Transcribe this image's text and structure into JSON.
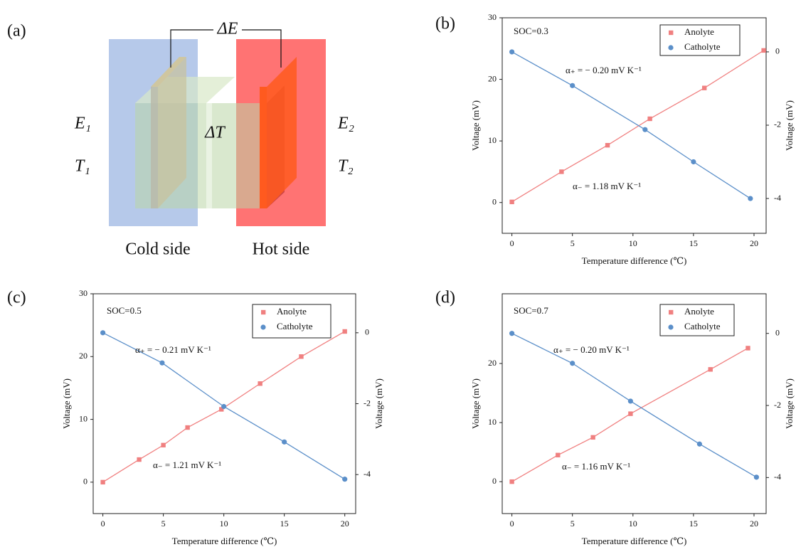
{
  "diagram": {
    "label": "(a)",
    "delta_e": "ΔE",
    "delta_t": "ΔT",
    "e1": "E₁",
    "t1": "T₁",
    "e2": "E₂",
    "t2": "T₂",
    "cold": "Cold side",
    "hot": "Hot side"
  },
  "chart_data": [
    {
      "type": "scatter",
      "label": "(b)",
      "annotations": [
        "SOC=0.3",
        "α₊ = − 0.20 mV K⁻¹",
        "α₋ = 1.18 mV K⁻¹"
      ],
      "x_label": "Temperature difference (℃)",
      "y_label": "Voltage (mV)",
      "y2_label": "Voltage (mV)",
      "xlim": [
        -0.8,
        21
      ],
      "xticks": [
        0,
        5,
        10,
        15,
        20
      ],
      "ylim": [
        -5,
        30
      ],
      "yticks": [
        0,
        10,
        20,
        30
      ],
      "y2lim": [
        -4.95,
        0.93
      ],
      "y2ticks": [
        0,
        -2,
        -4
      ],
      "legend": "upper right",
      "series": [
        {
          "name": "Anolyte",
          "color": "#f08080",
          "marker": "square",
          "x": [
            0,
            4.1,
            7.9,
            11.4,
            15.9,
            20.8
          ],
          "values": [
            0.1,
            5,
            9.3,
            13.6,
            18.6,
            24.7
          ]
        },
        {
          "name": "Catholyte",
          "color": "#5b8fc9",
          "marker": "circle",
          "axis": "y2",
          "x": [
            0,
            5,
            11,
            15,
            19.7
          ],
          "values": [
            0,
            -0.92,
            -2.12,
            -3.0,
            -4.0
          ]
        }
      ]
    },
    {
      "type": "scatter",
      "label": "(c)",
      "annotations": [
        "SOC=0.5",
        "α₊ = − 0.21 mV K⁻¹",
        "α₋ = 1.21 mV K⁻¹"
      ],
      "x_label": "Temperature difference (℃)",
      "y_label": "Voltage (mV)",
      "y2_label": "Voltage (mV)",
      "xlim": [
        -0.8,
        20.9
      ],
      "xticks": [
        0,
        5,
        10,
        15,
        20
      ],
      "ylim": [
        -5,
        30
      ],
      "yticks": [
        0,
        10,
        20,
        30
      ],
      "y2lim": [
        -5.1,
        1.1
      ],
      "y2ticks": [
        0,
        -2,
        -4
      ],
      "legend": "upper right",
      "series": [
        {
          "name": "Anolyte",
          "color": "#f08080",
          "marker": "square",
          "x": [
            0,
            3,
            5,
            7,
            9.8,
            13,
            16.4,
            20
          ],
          "values": [
            0,
            3.6,
            5.9,
            8.7,
            11.6,
            15.7,
            20,
            24
          ]
        },
        {
          "name": "Catholyte",
          "color": "#5b8fc9",
          "marker": "circle",
          "axis": "y2",
          "x": [
            0,
            4.9,
            10,
            15,
            20
          ],
          "values": [
            0,
            -0.85,
            -2.08,
            -3.08,
            -4.13
          ]
        }
      ]
    },
    {
      "type": "scatter",
      "label": "(d)",
      "annotations": [
        "SOC=0.7",
        "α₊ = − 0.20 mV K⁻¹",
        "α₋ = 1.16 mV K⁻¹"
      ],
      "x_label": "Temperature difference (℃)",
      "y_label": "Voltage (mV)",
      "y2_label": "Voltage (mV)",
      "xlim": [
        -0.8,
        21
      ],
      "xticks": [
        0,
        5,
        10,
        15,
        20
      ],
      "ylim": [
        -5.4,
        31.8
      ],
      "yticks": [
        0,
        10,
        20
      ],
      "y2lim": [
        -5,
        1.1
      ],
      "y2ticks": [
        0,
        -2,
        -4
      ],
      "legend": "upper right",
      "series": [
        {
          "name": "Anolyte",
          "color": "#f08080",
          "marker": "square",
          "x": [
            0,
            3.8,
            6.7,
            9.8,
            16.4,
            19.5
          ],
          "values": [
            0,
            4.5,
            7.5,
            11.5,
            19,
            22.6
          ]
        },
        {
          "name": "Catholyte",
          "color": "#5b8fc9",
          "marker": "circle",
          "axis": "y2",
          "x": [
            0,
            5,
            9.8,
            15.5,
            20.2
          ],
          "values": [
            0,
            -0.83,
            -1.88,
            -3.07,
            -3.99
          ]
        }
      ]
    }
  ]
}
